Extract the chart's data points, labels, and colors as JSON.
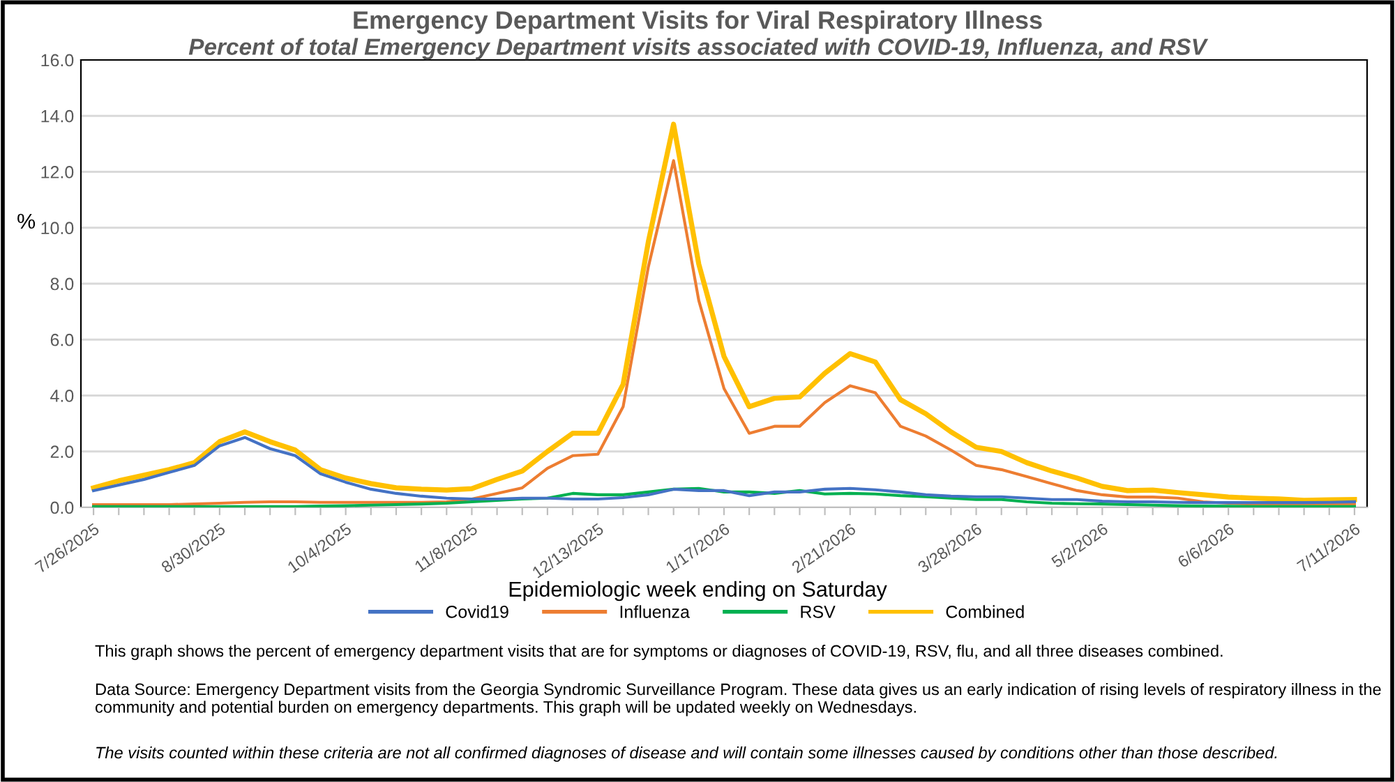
{
  "chart_data": {
    "type": "line",
    "title": "Emergency Department Visits for Viral Respiratory Illness",
    "subtitle": "Percent of total Emergency Department visits associated with COVID-19, Influenza, and RSV",
    "xlabel": "Epidemiologic week ending on Saturday",
    "ylabel": "%",
    "categories": [
      "7/26/2025",
      null,
      null,
      null,
      null,
      "8/30/2025",
      null,
      null,
      null,
      null,
      "10/4/2025",
      null,
      null,
      null,
      null,
      "11/8/2025",
      null,
      null,
      null,
      null,
      "12/13/2025",
      null,
      null,
      null,
      null,
      "1/17/2026",
      null,
      null,
      null,
      null,
      "2/21/2026",
      null,
      null,
      null,
      null,
      "3/28/2026",
      null,
      null,
      null,
      null,
      "5/2/2026",
      null,
      null,
      null,
      null,
      "6/6/2026",
      null,
      null,
      null,
      null,
      "7/11/2026"
    ],
    "series": [
      {
        "name": "Covid19",
        "color": "#4472c4",
        "values": [
          0.6,
          0.8,
          1.0,
          1.25,
          1.5,
          2.2,
          2.5,
          2.1,
          1.85,
          1.2,
          0.9,
          0.65,
          0.5,
          0.4,
          0.33,
          0.3,
          0.3,
          0.33,
          0.33,
          0.3,
          0.3,
          0.35,
          0.45,
          0.65,
          0.6,
          0.6,
          0.42,
          0.55,
          0.55,
          0.65,
          0.68,
          0.63,
          0.55,
          0.45,
          0.4,
          0.38,
          0.38,
          0.33,
          0.28,
          0.28,
          0.22,
          0.2,
          0.2,
          0.18,
          0.17,
          0.17,
          0.17,
          0.17,
          0.17,
          0.18,
          0.2
        ]
      },
      {
        "name": "Influenza",
        "color": "#ed7d31",
        "values": [
          0.1,
          0.1,
          0.1,
          0.1,
          0.12,
          0.15,
          0.18,
          0.2,
          0.2,
          0.18,
          0.18,
          0.18,
          0.18,
          0.18,
          0.2,
          0.3,
          0.5,
          0.7,
          1.4,
          1.85,
          1.9,
          3.6,
          8.6,
          12.4,
          7.4,
          4.25,
          2.65,
          2.9,
          2.9,
          3.75,
          4.35,
          4.1,
          2.9,
          2.55,
          2.05,
          1.5,
          1.35,
          1.1,
          0.85,
          0.6,
          0.45,
          0.37,
          0.37,
          0.33,
          0.2,
          0.15,
          0.12,
          0.1,
          0.1,
          0.1,
          0.12
        ]
      },
      {
        "name": "RSV",
        "color": "#00b050",
        "values": [
          0.03,
          0.03,
          0.03,
          0.03,
          0.03,
          0.03,
          0.03,
          0.03,
          0.03,
          0.05,
          0.06,
          0.08,
          0.1,
          0.12,
          0.15,
          0.2,
          0.25,
          0.3,
          0.33,
          0.5,
          0.45,
          0.45,
          0.55,
          0.65,
          0.68,
          0.55,
          0.55,
          0.5,
          0.6,
          0.48,
          0.5,
          0.48,
          0.42,
          0.38,
          0.33,
          0.28,
          0.28,
          0.2,
          0.15,
          0.13,
          0.12,
          0.1,
          0.08,
          0.06,
          0.05,
          0.04,
          0.03,
          0.03,
          0.03,
          0.03,
          0.03
        ]
      },
      {
        "name": "Combined",
        "color": "#ffc000",
        "values": [
          0.7,
          0.95,
          1.15,
          1.35,
          1.6,
          2.35,
          2.7,
          2.35,
          2.05,
          1.35,
          1.05,
          0.85,
          0.7,
          0.65,
          0.62,
          0.67,
          1.0,
          1.3,
          2.0,
          2.65,
          2.65,
          4.4,
          9.5,
          13.7,
          8.7,
          5.4,
          3.6,
          3.9,
          3.95,
          4.8,
          5.5,
          5.2,
          3.85,
          3.35,
          2.7,
          2.15,
          2.0,
          1.6,
          1.3,
          1.05,
          0.75,
          0.6,
          0.62,
          0.53,
          0.45,
          0.37,
          0.33,
          0.3,
          0.25,
          0.27,
          0.28
        ]
      }
    ],
    "ylim": [
      0,
      16
    ],
    "yticks": [
      {
        "value": 0,
        "label": "0.0"
      },
      {
        "value": 2,
        "label": "2.0"
      },
      {
        "value": 4,
        "label": "4.0"
      },
      {
        "value": 6,
        "label": "6.0"
      },
      {
        "value": 8,
        "label": "8.0"
      },
      {
        "value": 10,
        "label": "10.0"
      },
      {
        "value": 12,
        "label": "12.0"
      },
      {
        "value": 14,
        "label": "14.0"
      },
      {
        "value": 16,
        "label": "16.0"
      }
    ],
    "grid": "y",
    "legend": "bottom",
    "marker": "none",
    "line_style": "solid",
    "annotations": [
      "This graph shows the percent of emergency department visits that are for symptoms or diagnoses of COVID-19, RSV, flu, and all three diseases combined.",
      "Data Source: Emergency Department visits from the Georgia Syndromic Surveillance Program. These data gives us an early indication of rising levels of respiratory illness in the community and potential burden on emergency departments. This graph will be updated weekly on Wednesdays.",
      "The visits counted within these criteria are not all confirmed diagnoses of disease and will contain some illnesses caused by conditions other than those described."
    ]
  }
}
